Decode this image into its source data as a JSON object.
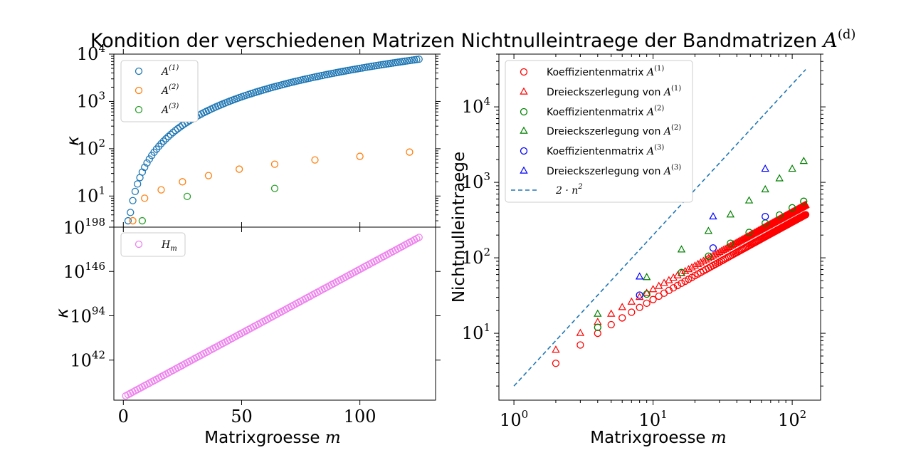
{
  "chart_data": [
    {
      "type": "scatter",
      "title": "Kondition der verschiedenen Matrizen",
      "xlabel": "",
      "ylabel": "κ",
      "yscale": "log",
      "ylim": [
        2.2,
        10000
      ],
      "yticks": [
        "10^1",
        "10^2",
        "10^3",
        "10^4"
      ],
      "xlim": [
        -4,
        132
      ],
      "legend": "top-left",
      "series": [
        {
          "name": "A^(1)",
          "color": "#1f77b4",
          "x_range": [
            2,
            125
          ],
          "values_rule": "kappa = m^2 / 2 (approx)",
          "endpoints": [
            [
              2,
              3
            ],
            [
              125,
              7800
            ]
          ]
        },
        {
          "name": "A^(2)",
          "color": "#ff7f0e",
          "points": [
            [
              4,
              3
            ],
            [
              9,
              9
            ],
            [
              16,
              13.5
            ],
            [
              25,
              20
            ],
            [
              36,
              27
            ],
            [
              49,
              37
            ],
            [
              64,
              47
            ],
            [
              81,
              58
            ],
            [
              100,
              69
            ],
            [
              121,
              85
            ]
          ]
        },
        {
          "name": "A^(3)",
          "color": "#2ca02c",
          "points": [
            [
              8,
              3
            ],
            [
              27,
              9.8
            ],
            [
              64,
              14.5
            ]
          ]
        }
      ]
    },
    {
      "type": "scatter",
      "title": "",
      "xlabel": "Matrixgroesse m",
      "ylabel": "κ",
      "yscale": "log",
      "ylim_exp": [
        -5,
        198
      ],
      "yticks": [
        "10^42",
        "10^94",
        "10^146",
        "10^198"
      ],
      "xticks": [
        0,
        50,
        100
      ],
      "xlim": [
        -4,
        132
      ],
      "legend": "top-left",
      "series": [
        {
          "name": "H_m",
          "color": "#ee82ee",
          "x_range": [
            1,
            125
          ],
          "endpoints_exp": [
            [
              1,
              0
            ],
            [
              125,
              186
            ]
          ]
        }
      ]
    },
    {
      "type": "scatter",
      "title": "Nichtnulleintraege der Bandmatrizen A^(d)",
      "xlabel": "Matrixgroesse m",
      "ylabel": "Nichtnulleintraege",
      "xscale": "log",
      "yscale": "log",
      "xlim": [
        0.78,
        160
      ],
      "ylim": [
        1.3,
        50000
      ],
      "xticks": [
        "10^0",
        "10^1",
        "10^2"
      ],
      "yticks": [
        "10^1",
        "10^2",
        "10^3",
        "10^4"
      ],
      "legend": "top-left",
      "series": [
        {
          "name": "Koeffizientenmatrix A^(1)",
          "color": "#ff0000",
          "marker": "circle",
          "x_range": [
            2,
            125
          ],
          "rule": "3n-2"
        },
        {
          "name": "Dreieckszerlegung von A^(1)",
          "color": "#ff0000",
          "marker": "triangle",
          "x_range": [
            2,
            125
          ],
          "rule": "4n-2"
        },
        {
          "name": "Koeffizientenmatrix A^(2)",
          "color": "#008000",
          "marker": "circle",
          "points": [
            [
              4,
              12
            ],
            [
              9,
              33
            ],
            [
              16,
              64
            ],
            [
              25,
              105
            ],
            [
              36,
              156
            ],
            [
              49,
              217
            ],
            [
              64,
              288
            ],
            [
              81,
              369
            ],
            [
              100,
              460
            ],
            [
              121,
              561
            ]
          ]
        },
        {
          "name": "Dreieckszerlegung von A^(2)",
          "color": "#008000",
          "marker": "triangle",
          "points": [
            [
              4,
              18
            ],
            [
              9,
              55
            ],
            [
              16,
              128
            ],
            [
              25,
              225
            ],
            [
              36,
              372
            ],
            [
              49,
              570
            ],
            [
              64,
              800
            ],
            [
              81,
              1120
            ],
            [
              100,
              1500
            ],
            [
              121,
              1900
            ]
          ]
        },
        {
          "name": "Koeffizientenmatrix A^(3)",
          "color": "#0000ff",
          "marker": "circle",
          "points": [
            [
              8,
              32
            ],
            [
              27,
              135
            ],
            [
              64,
              352
            ]
          ]
        },
        {
          "name": "Dreieckszerlegung von A^(3)",
          "color": "#0000ff",
          "marker": "triangle",
          "points": [
            [
              8,
              56
            ],
            [
              27,
              350
            ],
            [
              64,
              1500
            ]
          ]
        },
        {
          "name": "2 · n^2",
          "color": "#1f77b4",
          "marker": "dashed-line",
          "x_range": [
            1,
            125
          ],
          "rule": "2n^2"
        }
      ]
    }
  ],
  "labels": {
    "title_left": "Kondition der verschiedenen Matrizen",
    "title_right_text": "Nichtnulleintraege der Bandmatrizen ",
    "title_right_math": "A",
    "title_right_sup": "(d)",
    "xlabel_text": "Matrixgroesse ",
    "xlabel_math": "m",
    "ylabel_kappa": "κ",
    "ylabel_right": "Nichtnulleintraege",
    "tick_base": "10",
    "legend_top": [
      "A",
      "A",
      "A"
    ],
    "legend_top_sup": [
      "(1)",
      "(2)",
      "(3)"
    ],
    "legend_bottom": "H",
    "legend_bottom_sub": "m",
    "legend_right_text": [
      "Koeffizientenmatrix ",
      "Dreieckszerlegung von ",
      "Koeffizientenmatrix ",
      "Dreieckszerlegung von ",
      "Koeffizientenmatrix ",
      "Dreieckszerlegung von "
    ],
    "legend_right_sup": [
      "(1)",
      "(1)",
      "(2)",
      "(2)",
      "(3)",
      "(3)"
    ],
    "legend_right_line": "2 · n",
    "legend_right_line_sup": "2"
  }
}
